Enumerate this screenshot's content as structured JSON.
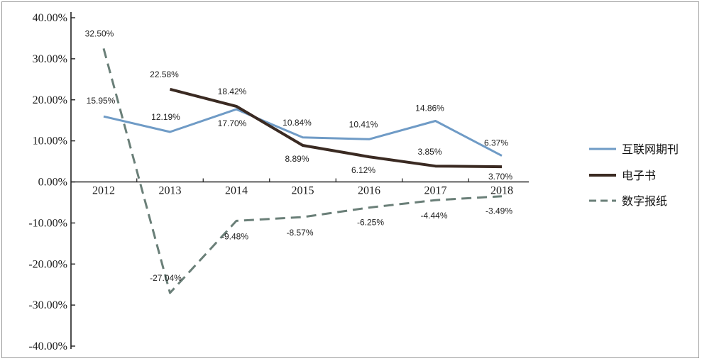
{
  "chart_data": {
    "type": "line",
    "title": "",
    "xlabel": "",
    "ylabel": "",
    "categories": [
      "2012",
      "2013",
      "2014",
      "2015",
      "2016",
      "2017",
      "2018"
    ],
    "ylim": [
      -40,
      40
    ],
    "yticks": [
      40,
      30,
      20,
      10,
      0,
      -10,
      -20,
      -30,
      -40
    ],
    "ytick_labels": [
      "40.00%",
      "30.00%",
      "20.00%",
      "10.00%",
      "0.00%",
      "-10.00%",
      "-20.00%",
      "-30.00%",
      "-40.00%"
    ],
    "grid": false,
    "legend_position": "right",
    "series": [
      {
        "name": "互联网期刊",
        "color": "#6f9bc6",
        "style": "solid",
        "values": [
          15.95,
          12.19,
          17.7,
          10.84,
          10.41,
          14.86,
          6.37
        ],
        "labels": [
          "15.95%",
          "12.19%",
          "17.70%",
          "10.84%",
          "10.41%",
          "14.86%",
          "6.37%"
        ]
      },
      {
        "name": "电子书",
        "color": "#3a2a22",
        "style": "solid",
        "values": [
          null,
          22.58,
          18.42,
          8.89,
          6.12,
          3.85,
          3.7
        ],
        "labels": [
          "",
          "22.58%",
          "18.42%",
          "8.89%",
          "6.12%",
          "3.85%",
          "3.70%"
        ]
      },
      {
        "name": "数字报纸",
        "color": "#6a7f78",
        "style": "dashed",
        "values": [
          32.5,
          -27.04,
          -9.48,
          -8.57,
          -6.25,
          -4.44,
          -3.49
        ],
        "labels": [
          "32.50%",
          "-27.04%",
          "-9.48%",
          "-8.57%",
          "-6.25%",
          "-4.44%",
          "-3.49%"
        ]
      }
    ]
  }
}
